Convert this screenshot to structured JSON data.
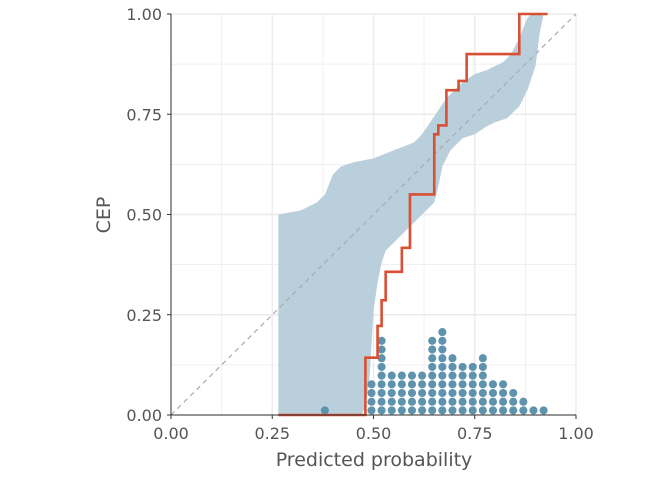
{
  "chart_data": {
    "type": "line",
    "title": "",
    "xlabel": "Predicted probability",
    "ylabel": "CEP",
    "xlim": [
      0,
      1
    ],
    "ylim": [
      0,
      1
    ],
    "x_ticks": [
      "0.00",
      "0.25",
      "0.50",
      "0.75",
      "1.00"
    ],
    "y_ticks": [
      "0.00",
      "0.25",
      "0.50",
      "0.75",
      "1.00"
    ],
    "grid": true,
    "legend": "none",
    "colors": {
      "band": "#b9cfdb",
      "cep_line": "#d94f33",
      "dots": "#5f93ad",
      "diagonal": "#aaaaaa",
      "grid": "#ebebeb"
    },
    "reference_line": {
      "from": [
        0,
        0
      ],
      "to": [
        1,
        1
      ],
      "style": "dashed"
    },
    "confidence_band": {
      "upper": [
        [
          0.265,
          0.5
        ],
        [
          0.32,
          0.51
        ],
        [
          0.36,
          0.53
        ],
        [
          0.38,
          0.55
        ],
        [
          0.4,
          0.6
        ],
        [
          0.42,
          0.62
        ],
        [
          0.45,
          0.63
        ],
        [
          0.5,
          0.64
        ],
        [
          0.55,
          0.66
        ],
        [
          0.6,
          0.68
        ],
        [
          0.62,
          0.7
        ],
        [
          0.64,
          0.73
        ],
        [
          0.66,
          0.76
        ],
        [
          0.68,
          0.79
        ],
        [
          0.7,
          0.81
        ],
        [
          0.72,
          0.83
        ],
        [
          0.75,
          0.85
        ],
        [
          0.78,
          0.86
        ],
        [
          0.8,
          0.87
        ],
        [
          0.82,
          0.88
        ],
        [
          0.84,
          0.9
        ],
        [
          0.86,
          0.94
        ],
        [
          0.88,
          0.99
        ],
        [
          0.89,
          1.0
        ]
      ],
      "lower": [
        [
          0.265,
          0.0
        ],
        [
          0.47,
          0.0
        ],
        [
          0.48,
          0.02
        ],
        [
          0.49,
          0.09
        ],
        [
          0.5,
          0.26
        ],
        [
          0.51,
          0.33
        ],
        [
          0.52,
          0.38
        ],
        [
          0.53,
          0.41
        ],
        [
          0.55,
          0.43
        ],
        [
          0.58,
          0.46
        ],
        [
          0.6,
          0.48
        ],
        [
          0.63,
          0.51
        ],
        [
          0.65,
          0.53
        ],
        [
          0.66,
          0.57
        ],
        [
          0.67,
          0.62
        ],
        [
          0.69,
          0.66
        ],
        [
          0.72,
          0.69
        ],
        [
          0.75,
          0.7
        ],
        [
          0.78,
          0.72
        ],
        [
          0.8,
          0.73
        ],
        [
          0.83,
          0.74
        ],
        [
          0.86,
          0.77
        ],
        [
          0.88,
          0.81
        ],
        [
          0.9,
          0.87
        ],
        [
          0.91,
          0.95
        ],
        [
          0.92,
          1.0
        ]
      ]
    },
    "cep_step_points": [
      [
        0.265,
        0.0
      ],
      [
        0.48,
        0.0
      ],
      [
        0.48,
        0.143
      ],
      [
        0.51,
        0.143
      ],
      [
        0.51,
        0.222
      ],
      [
        0.52,
        0.222
      ],
      [
        0.52,
        0.286
      ],
      [
        0.53,
        0.286
      ],
      [
        0.53,
        0.357
      ],
      [
        0.57,
        0.357
      ],
      [
        0.57,
        0.417
      ],
      [
        0.59,
        0.417
      ],
      [
        0.59,
        0.55
      ],
      [
        0.65,
        0.55
      ],
      [
        0.65,
        0.7
      ],
      [
        0.66,
        0.7
      ],
      [
        0.66,
        0.722
      ],
      [
        0.68,
        0.722
      ],
      [
        0.68,
        0.81
      ],
      [
        0.71,
        0.81
      ],
      [
        0.71,
        0.833
      ],
      [
        0.73,
        0.833
      ],
      [
        0.73,
        0.9
      ],
      [
        0.86,
        0.9
      ],
      [
        0.86,
        1.0
      ],
      [
        0.93,
        1.0
      ]
    ],
    "dot_histogram": {
      "bin_width": 0.025,
      "dot_count_per_column": [
        [
          0.38,
          1
        ],
        [
          0.495,
          4
        ],
        [
          0.52,
          9
        ],
        [
          0.545,
          5
        ],
        [
          0.57,
          5
        ],
        [
          0.595,
          5
        ],
        [
          0.62,
          5
        ],
        [
          0.645,
          9
        ],
        [
          0.67,
          10
        ],
        [
          0.695,
          7
        ],
        [
          0.72,
          6
        ],
        [
          0.745,
          6
        ],
        [
          0.77,
          7
        ],
        [
          0.795,
          4
        ],
        [
          0.82,
          4
        ],
        [
          0.845,
          3
        ],
        [
          0.87,
          2
        ],
        [
          0.895,
          1
        ],
        [
          0.92,
          1
        ]
      ]
    }
  }
}
